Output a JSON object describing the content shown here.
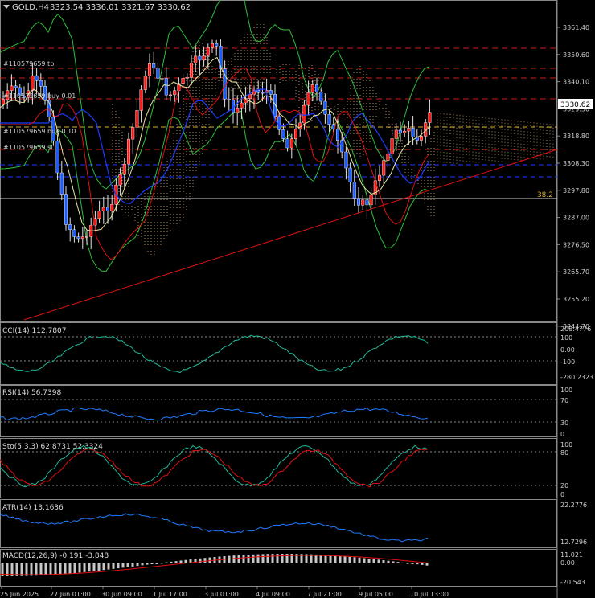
{
  "header": {
    "symbol_tf": "GOLD,H4",
    "ohlc": "3323.54 3336.01 3321.67 3330.62"
  },
  "current_price": "3330.62",
  "price_axis": [
    "3361.40",
    "3350.60",
    "3340.10",
    "3329.30",
    "3318.80",
    "3308.30",
    "3297.80",
    "3287.00",
    "3276.50",
    "3265.70",
    "3255.20",
    "3244.70"
  ],
  "price_range": [
    3244.7,
    3367.2
  ],
  "fib_label": "38.2",
  "order_labels": [
    "#110579659 tp",
    "#110579659 sl",
    "#110579659 buy 0.01",
    "#110579659 buy 0.10"
  ],
  "colors": {
    "bull": "#ff1a1a",
    "bear": "#1a5cff",
    "ma_fast": "#e6e6a0",
    "ma_slow": "#1a3cff",
    "band": "#2fbf3a",
    "red_line": "#e01010",
    "level": "#d01818",
    "yellow": "#d9b030",
    "blue_level": "#1a3cff",
    "cci": "#20b89a",
    "rsi": "#1e7bff",
    "sto_main": "#20b89a",
    "sto_signal": "#e01010",
    "atr": "#1e7bff",
    "macd_signal": "#e01010",
    "macd_hist": "#c8c8c8"
  },
  "panels": {
    "cci": {
      "label": "CCI(14) 112.7807",
      "ticks": [
        "208.4776",
        "100",
        "0.00",
        "-100",
        "-280.2323"
      ]
    },
    "rsi": {
      "label": "RSI(14) 56.7398",
      "ticks": [
        "100",
        "70",
        "30",
        "0"
      ]
    },
    "sto": {
      "label": "Sto(5,3,3) 62.8731 52.3324",
      "ticks": [
        "100",
        "80",
        "20",
        "0"
      ]
    },
    "atr": {
      "label": "ATR(14) 13.1636",
      "ticks": [
        "22.2776",
        "12.7296"
      ]
    },
    "macd": {
      "label": "MACD(12,26,9) -0.191 -3.848",
      "ticks": [
        "11.021",
        "0.00",
        "-20.543"
      ]
    }
  },
  "time_axis": [
    "25 Jun 2025",
    "27 Jun 01:00",
    "30 Jun 09:00",
    "1 Jul 17:00",
    "3 Jul 01:00",
    "4 Jul 09:00",
    "7 Jul 21:00",
    "9 Jul 05:00",
    "10 Jul 13:00"
  ]
}
